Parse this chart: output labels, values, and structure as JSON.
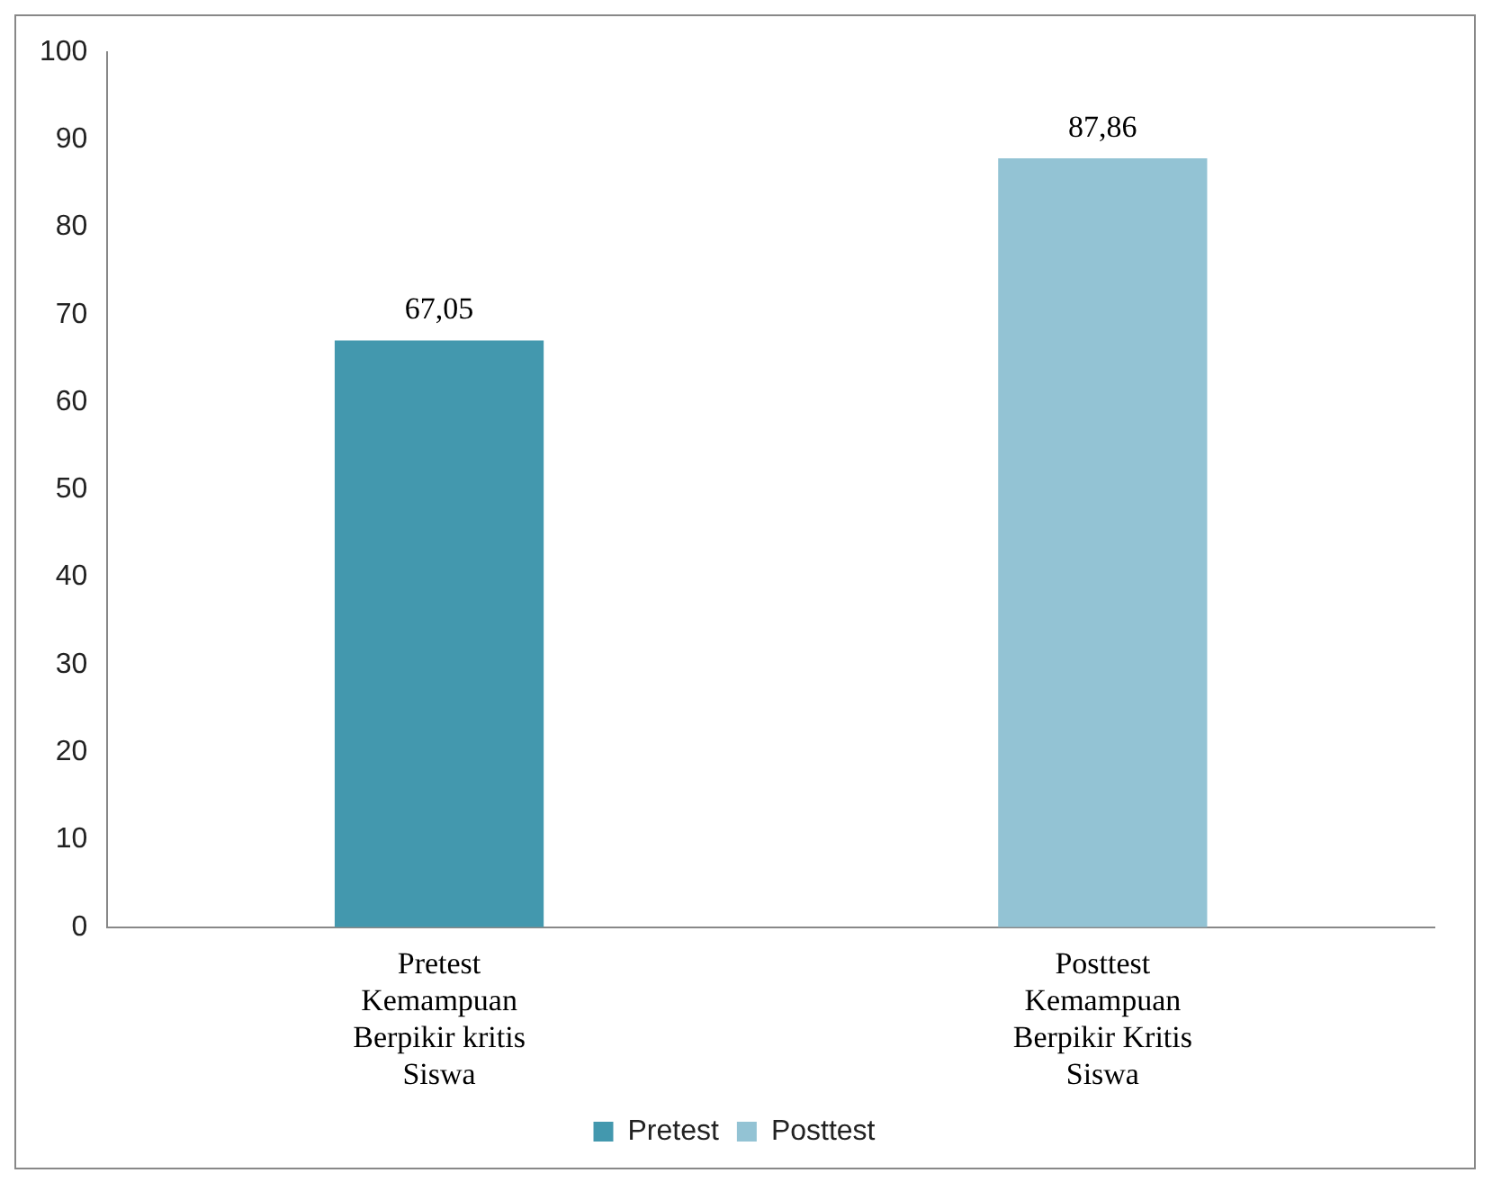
{
  "chart_data": {
    "type": "bar",
    "categories": [
      "Pretest Kemampuan Berpikir kritis Siswa",
      "Posttest Kemampuan Berpikir Kritis Siswa"
    ],
    "series": [
      {
        "name": "Pretest",
        "color": "#4398ae",
        "values": [
          67.05,
          null
        ],
        "value_labels": [
          "67,05",
          null
        ]
      },
      {
        "name": "Posttest",
        "color": "#93c3d4",
        "values": [
          null,
          87.86
        ],
        "value_labels": [
          null,
          "87,86"
        ]
      }
    ],
    "ylim": [
      0,
      100
    ],
    "yticks": [
      0,
      10,
      20,
      30,
      40,
      50,
      60,
      70,
      80,
      90,
      100
    ],
    "grid": false,
    "legend": "bottom"
  }
}
